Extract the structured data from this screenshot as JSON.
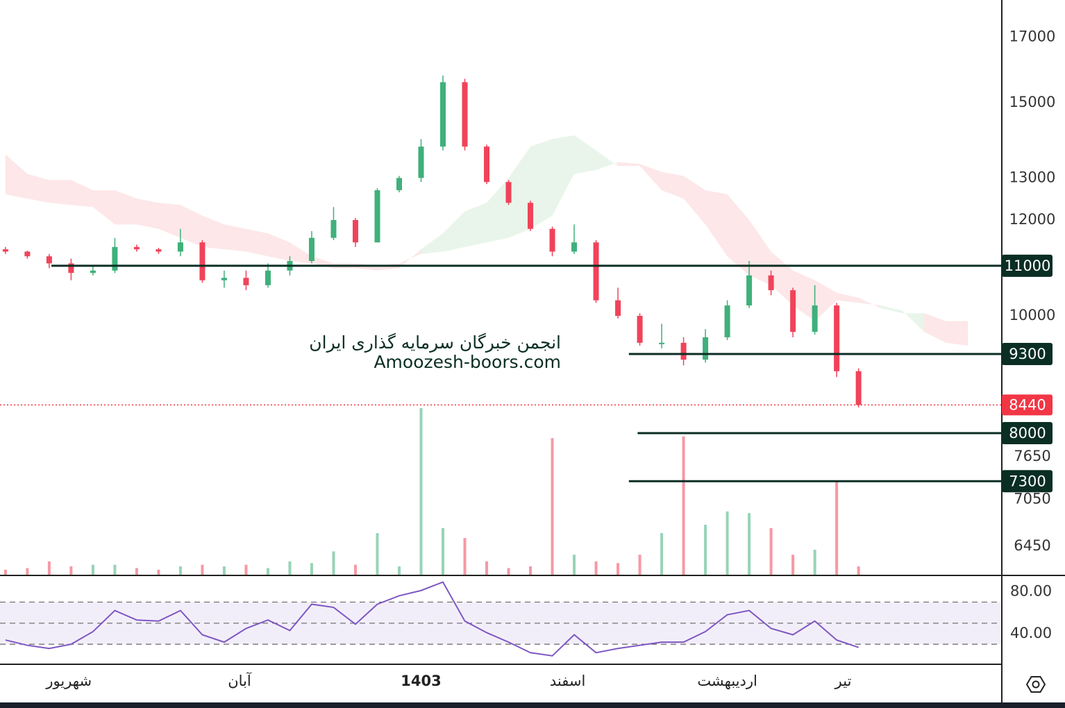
{
  "chart_data": {
    "type": "candlestick",
    "watermark": [
      "انجمن خبرگان سرمایه گذاری ایران",
      "Amoozesh-boors.com"
    ],
    "log_scale": true,
    "ylim": [
      6110,
      18240
    ],
    "yticks": [
      17000,
      15000,
      13000,
      12000,
      10000,
      7650,
      7050,
      6450
    ],
    "xlim": [
      -0.25,
      45.55
    ],
    "xticks": [
      {
        "value": 2.9,
        "label": "شهریور"
      },
      {
        "value": 10.7,
        "label": "آبان"
      },
      {
        "value": 19,
        "label": "1403"
      },
      {
        "value": 25.7,
        "label": "اسفند"
      },
      {
        "value": 33,
        "label": "اردیبهشت"
      },
      {
        "value": 38.3,
        "label": "تیر"
      }
    ],
    "up_color": "#3fb07b",
    "down_color": "#f0435a",
    "open": [
      11350,
      11300,
      11200,
      11050,
      10850,
      10900,
      11400,
      11350,
      11300,
      11500,
      10700,
      10750,
      10600,
      10900,
      11100,
      11600,
      12000,
      11500,
      12700,
      13000,
      13800,
      15600,
      13800,
      12900,
      12400,
      11800,
      11300,
      11500,
      10300,
      10000,
      9500,
      9500,
      9200,
      9600,
      10200,
      10800,
      10500,
      9700,
      10200,
      9000
    ],
    "high": [
      11400,
      11320,
      11250,
      11150,
      11000,
      11600,
      11450,
      11380,
      11800,
      11550,
      10900,
      10900,
      11050,
      11200,
      11750,
      12300,
      12050,
      12750,
      13050,
      14000,
      15800,
      15700,
      13850,
      12950,
      12450,
      11850,
      11900,
      11550,
      10550,
      10050,
      9850,
      9600,
      9750,
      10300,
      11100,
      10900,
      10550,
      10600,
      10250,
      9050
    ],
    "low": [
      11250,
      11150,
      10950,
      10700,
      10800,
      10850,
      11300,
      11250,
      11200,
      10650,
      10550,
      10500,
      10550,
      10800,
      11050,
      11550,
      11400,
      11500,
      12650,
      12900,
      13700,
      13700,
      12850,
      12350,
      11750,
      11200,
      11250,
      10250,
      9950,
      9450,
      9400,
      9100,
      9150,
      9550,
      10150,
      10400,
      9600,
      9650,
      8900,
      8400
    ],
    "close": [
      11300,
      11200,
      11050,
      10850,
      10900,
      11400,
      11350,
      11300,
      11500,
      10700,
      10750,
      10600,
      10900,
      11100,
      11600,
      12000,
      11500,
      12700,
      13000,
      13800,
      15600,
      13800,
      12900,
      12400,
      11800,
      11300,
      11500,
      10300,
      10000,
      9500,
      9500,
      9200,
      9600,
      10200,
      10800,
      10500,
      9700,
      10200,
      9000,
      8440
    ],
    "cloud": {
      "span_a": [
        12600,
        12500,
        12400,
        12350,
        12300,
        11900,
        11900,
        11800,
        11600,
        11400,
        11350,
        11300,
        11200,
        11100,
        11050,
        10950,
        10950,
        10900,
        10950,
        11350,
        11700,
        12200,
        12400,
        13000,
        13800,
        14000,
        14100,
        13700,
        13300,
        13300,
        12700,
        12500,
        11900,
        11200,
        10800,
        10600,
        10200,
        9900,
        10300,
        10250,
        10200,
        10100,
        9700,
        9500,
        9450
      ],
      "span_b": [
        13600,
        13100,
        12950,
        12950,
        12700,
        12700,
        12500,
        12400,
        12350,
        12100,
        11900,
        11800,
        11700,
        11500,
        11200,
        11050,
        11050,
        11000,
        11050,
        11250,
        11300,
        11400,
        11500,
        11600,
        11800,
        12100,
        13100,
        13200,
        13400,
        13350,
        13150,
        13050,
        12700,
        12600,
        12000,
        11300,
        10900,
        10700,
        10450,
        10350,
        10150,
        10050,
        10050,
        9900,
        9900
      ],
      "up_color": "#4caf50",
      "down_color": "#f23645"
    },
    "levels": [
      {
        "value": 11000,
        "from": 2.1
      },
      {
        "value": 9300,
        "from": 28.5
      },
      {
        "value": 8000,
        "from": 28.9
      },
      {
        "value": 7300,
        "from": 28.5
      }
    ],
    "level_color": "#0b2e24",
    "last_price": {
      "value": 8440,
      "color": "#f23645"
    },
    "volume": {
      "ylim": [
        0,
        100
      ],
      "values": [
        3,
        4,
        8,
        5,
        6,
        6,
        4,
        3,
        5,
        6,
        5,
        6,
        4,
        8,
        7,
        14,
        6,
        25,
        5,
        100,
        28,
        22,
        8,
        4,
        5,
        82,
        12,
        8,
        7,
        12,
        25,
        83,
        30,
        38,
        37,
        28,
        12,
        15,
        56,
        5
      ]
    },
    "rsi": {
      "ylim": [
        11,
        94
      ],
      "yticks": [
        {
          "value": 80,
          "label": "80.00"
        },
        {
          "value": 40,
          "label": "40.00"
        }
      ],
      "bands": [
        30,
        50,
        70
      ],
      "color": "#7e57c2",
      "values": [
        34,
        29,
        26,
        30,
        42,
        62,
        53,
        52,
        62,
        39,
        32,
        45,
        53,
        43,
        68,
        65,
        49,
        68,
        76,
        81,
        89,
        52,
        41,
        32,
        22,
        19,
        39,
        22,
        26,
        29,
        32,
        32,
        42,
        58,
        62,
        45,
        39,
        52,
        34,
        27
      ]
    }
  }
}
